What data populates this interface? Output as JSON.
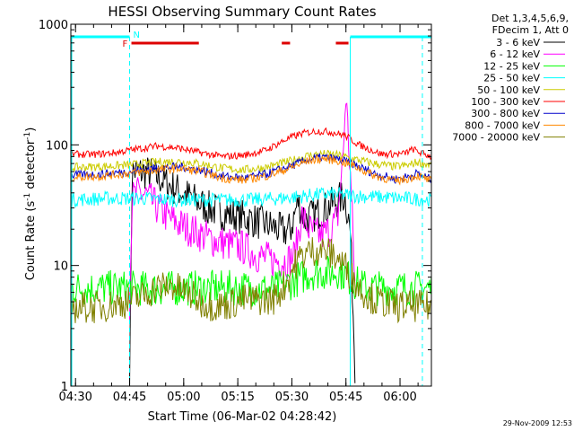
{
  "chart_data": {
    "type": "line",
    "title": "HESSI Observing Summary Count Rates",
    "xlabel": "Start Time (06-Mar-02 04:28:42)",
    "ylabel_main": "Count Rate (s",
    "ylabel_sup1": "-1",
    "ylabel_mid": " detector",
    "ylabel_sup2": "-1",
    "ylabel_end": ")",
    "yscale": "log",
    "ylim": [
      1,
      1000
    ],
    "xlim_minutes": [
      0,
      100
    ],
    "x_tick_labels": [
      "04:30",
      "04:45",
      "05:00",
      "05:15",
      "05:30",
      "05:45",
      "06:00"
    ],
    "x_tick_minutes": [
      1.3,
      16.3,
      31.3,
      46.3,
      61.3,
      76.3,
      91.3
    ],
    "y_tick_labels": [
      "1",
      "10",
      "100",
      "1000"
    ],
    "y_tick_values": [
      1,
      10,
      100,
      1000
    ],
    "legend_header": [
      "Det 1,3,4,5,6,9,",
      "FDecim 1, Att 0"
    ],
    "series": [
      {
        "name": "3 - 6 keV",
        "color": "#000000",
        "x": [
          16.3,
          17,
          19,
          22,
          25,
          28,
          31,
          35,
          38,
          41,
          45,
          48,
          52,
          56,
          59,
          61,
          63,
          65,
          67,
          69,
          71,
          73,
          75,
          76,
          77.5,
          79
        ],
        "y": [
          1,
          60,
          60,
          58,
          52,
          45,
          40,
          34,
          30,
          28,
          26,
          25,
          23,
          21,
          19,
          20,
          34,
          24,
          26,
          28,
          30,
          33,
          36,
          38,
          20,
          1
        ]
      },
      {
        "name": "6 - 12 keV",
        "color": "#ff00ff",
        "x": [
          16.3,
          17,
          19,
          21,
          24,
          27,
          30,
          33,
          36,
          40,
          44,
          48,
          52,
          56,
          60,
          62,
          64,
          66,
          68,
          70,
          72,
          74,
          75.5,
          76.3,
          77.5,
          79
        ],
        "y": [
          5,
          36,
          40,
          38,
          30,
          25,
          22,
          20,
          18,
          16,
          15,
          14,
          12,
          11,
          11,
          12,
          26,
          20,
          18,
          18,
          20,
          25,
          80,
          260,
          60,
          5
        ]
      },
      {
        "name": "12 - 25 keV",
        "color": "#00ff00",
        "x": [
          0,
          8,
          16,
          24,
          32,
          40,
          48,
          56,
          58,
          60,
          62,
          64,
          66,
          68,
          70,
          72,
          74,
          76,
          78,
          82,
          90,
          100
        ],
        "y": [
          6.5,
          6.5,
          6.5,
          6.4,
          6.5,
          6.5,
          6.5,
          6.3,
          6.6,
          7,
          7.5,
          8,
          8.5,
          8.8,
          8.8,
          8.6,
          9,
          8.5,
          7.5,
          6.5,
          6.5,
          6.5
        ]
      },
      {
        "name": "25 - 50 keV",
        "color": "#00ffff",
        "x": [
          0,
          10,
          20,
          30,
          40,
          50,
          58,
          62,
          66,
          70,
          74,
          78,
          85,
          92,
          100
        ],
        "y": [
          35,
          36,
          36,
          35,
          35,
          35,
          36,
          37,
          38,
          39,
          39,
          38,
          37,
          36,
          35
        ]
      },
      {
        "name": "50 - 100 keV",
        "color": "#cccc00",
        "x": [
          0,
          8,
          16,
          24,
          30,
          36,
          42,
          48,
          54,
          60,
          66,
          70,
          74,
          78,
          84,
          90,
          94,
          96,
          100
        ],
        "y": [
          65,
          66,
          68,
          72,
          73,
          70,
          64,
          62,
          65,
          72,
          82,
          84,
          82,
          77,
          70,
          66,
          68,
          72,
          68
        ]
      },
      {
        "name": "100 - 300 keV",
        "color": "#ff0000",
        "x": [
          0,
          6,
          12,
          18,
          24,
          30,
          36,
          42,
          48,
          54,
          60,
          64,
          68,
          72,
          76,
          80,
          86,
          92,
          95,
          97,
          100
        ],
        "y": [
          84,
          83,
          86,
          92,
          98,
          94,
          86,
          80,
          82,
          90,
          112,
          124,
          130,
          128,
          120,
          100,
          84,
          84,
          92,
          86,
          80
        ]
      },
      {
        "name": "300 - 800 keV",
        "color": "#0000cc",
        "x": [
          0,
          8,
          16,
          24,
          30,
          36,
          42,
          48,
          54,
          60,
          66,
          70,
          74,
          78,
          84,
          90,
          94,
          96,
          100
        ],
        "y": [
          56,
          57,
          60,
          64,
          66,
          62,
          55,
          53,
          57,
          65,
          76,
          79,
          76,
          70,
          58,
          52,
          55,
          58,
          52
        ]
      },
      {
        "name": "800 - 7000 keV",
        "color": "#ff8800",
        "x": [
          0,
          8,
          16,
          24,
          30,
          36,
          42,
          48,
          54,
          60,
          66,
          70,
          74,
          78,
          84,
          90,
          94,
          96,
          100
        ],
        "y": [
          54,
          55,
          58,
          62,
          64,
          60,
          53,
          51,
          55,
          63,
          74,
          77,
          74,
          68,
          56,
          50,
          53,
          56,
          50
        ]
      },
      {
        "name": "7000 - 20000 keV",
        "color": "#808000",
        "x": [
          0,
          8,
          16,
          20,
          24,
          28,
          32,
          36,
          40,
          44,
          48,
          52,
          56,
          58,
          60,
          62,
          64,
          66,
          68,
          70,
          72,
          74,
          76,
          78,
          80,
          84,
          90,
          100
        ],
        "y": [
          4.5,
          4.5,
          5,
          5.6,
          6.6,
          6.8,
          6,
          5,
          4.6,
          4.8,
          5.2,
          5.2,
          5.2,
          6,
          7.5,
          10,
          12,
          13,
          13.5,
          13.5,
          12.5,
          11.5,
          10,
          8,
          6.5,
          5.2,
          4.6,
          4.6
        ]
      }
    ],
    "attenuator_bar_color": "#00ffff",
    "attenuator_segments_minutes": [
      [
        0,
        16.3
      ],
      [
        77.5,
        100
      ]
    ],
    "attenuator_dashed_minutes": [
      16.3,
      97.5
    ],
    "attenuator_solid_minutes": [
      77.5
    ],
    "flare_label": "F",
    "night_label": "N",
    "flare_bar_color": "#dd0000",
    "flare_segments_minutes": [
      [
        16.8,
        35.5
      ],
      [
        58.5,
        60.8
      ],
      [
        73.5,
        77
      ]
    ],
    "timestamp": "29-Nov-2009 12:53"
  }
}
